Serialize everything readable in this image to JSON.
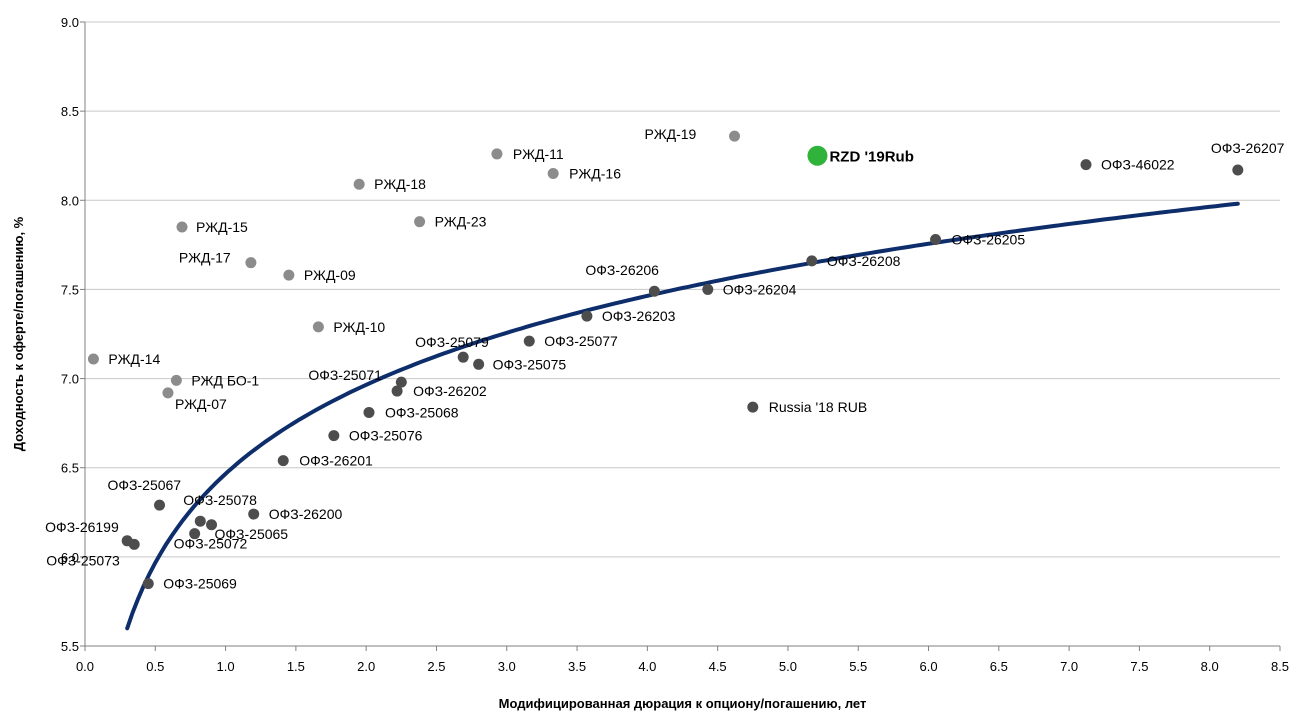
{
  "chart_data": {
    "type": "scatter",
    "title": "",
    "xlabel": "Модифицированная дюрация к опциону/погашению, лет",
    "ylabel": "Доходность к оферте/погашению, %",
    "xlim": [
      0.0,
      8.5
    ],
    "ylim": [
      5.5,
      9.0
    ],
    "x_ticks": [
      "0.0",
      "0.5",
      "1.0",
      "1.5",
      "2.0",
      "2.5",
      "3.0",
      "3.5",
      "4.0",
      "4.5",
      "5.0",
      "5.5",
      "6.0",
      "6.5",
      "7.0",
      "7.5",
      "8.0",
      "8.5"
    ],
    "y_ticks": [
      "5.5",
      "6.0",
      "6.5",
      "7.0",
      "7.5",
      "8.0",
      "8.5",
      "9.0"
    ],
    "grid": "horizontal",
    "legend": "none",
    "colors": {
      "rzd": "#8c8c8c",
      "ofz": "#4d4d4d",
      "highlight": "#2fb33a",
      "curve": "#0d2d6b"
    },
    "trend": {
      "type": "logarithmic",
      "x_range": [
        0.3,
        8.2
      ],
      "a": 6.466,
      "b": 0.72
    },
    "series": [
      {
        "group": "rzd",
        "points": [
          {
            "label": "РЖД-19",
            "x": 4.62,
            "y": 8.36
          },
          {
            "label": "РЖД-11",
            "x": 2.93,
            "y": 8.26
          },
          {
            "label": "РЖД-16",
            "x": 3.33,
            "y": 8.15
          },
          {
            "label": "РЖД-18",
            "x": 1.95,
            "y": 8.09
          },
          {
            "label": "РЖД-23",
            "x": 2.38,
            "y": 7.88
          },
          {
            "label": "РЖД-15",
            "x": 0.69,
            "y": 7.85
          },
          {
            "label": "РЖД-17",
            "x": 1.18,
            "y": 7.65
          },
          {
            "label": "РЖД-09",
            "x": 1.45,
            "y": 7.58
          },
          {
            "label": "РЖД-10",
            "x": 1.66,
            "y": 7.29
          },
          {
            "label": "РЖД-14",
            "x": 0.06,
            "y": 7.11
          },
          {
            "label": "РЖД БО-1",
            "x": 0.65,
            "y": 6.99
          },
          {
            "label": "РЖД-07",
            "x": 0.59,
            "y": 6.92
          }
        ]
      },
      {
        "group": "ofz",
        "points": [
          {
            "label": "ОФЗ-26207",
            "x": 8.2,
            "y": 8.17
          },
          {
            "label": "ОФЗ-46022",
            "x": 7.12,
            "y": 8.2
          },
          {
            "label": "ОФЗ-26205",
            "x": 6.05,
            "y": 7.78
          },
          {
            "label": "ОФЗ-26208",
            "x": 5.17,
            "y": 7.66
          },
          {
            "label": "ОФЗ-26206",
            "x": 4.05,
            "y": 7.49
          },
          {
            "label": "ОФЗ-26204",
            "x": 4.43,
            "y": 7.5
          },
          {
            "label": "ОФЗ-26203",
            "x": 3.57,
            "y": 7.35
          },
          {
            "label": "ОФЗ-25077",
            "x": 3.16,
            "y": 7.21
          },
          {
            "label": "ОФЗ-25079",
            "x": 2.69,
            "y": 7.12
          },
          {
            "label": "ОФЗ-25075",
            "x": 2.8,
            "y": 7.08
          },
          {
            "label": "ОФЗ-25071",
            "x": 2.25,
            "y": 6.98
          },
          {
            "label": "ОФЗ-26202",
            "x": 2.22,
            "y": 6.93
          },
          {
            "label": "ОФЗ-25068",
            "x": 2.02,
            "y": 6.81
          },
          {
            "label": "ОФЗ-25076",
            "x": 1.77,
            "y": 6.68
          },
          {
            "label": "ОФЗ-26201",
            "x": 1.41,
            "y": 6.54
          },
          {
            "label": "Russia '18 RUB",
            "x": 4.75,
            "y": 6.84
          },
          {
            "label": "ОФЗ-25067",
            "x": 0.53,
            "y": 6.29
          },
          {
            "label": "ОФЗ-26200",
            "x": 1.2,
            "y": 6.24
          },
          {
            "label": "ОФЗ-25078",
            "x": 0.82,
            "y": 6.2
          },
          {
            "label": "ОФЗ-25065",
            "x": 0.9,
            "y": 6.18
          },
          {
            "label": "ОФЗ-25072",
            "x": 0.78,
            "y": 6.13
          },
          {
            "label": "ОФЗ-26199",
            "x": 0.3,
            "y": 6.09
          },
          {
            "label": "ОФЗ-25073",
            "x": 0.35,
            "y": 6.07
          },
          {
            "label": "ОФЗ-25069",
            "x": 0.45,
            "y": 5.85
          }
        ]
      },
      {
        "group": "highlight",
        "points": [
          {
            "label": "RZD '19Rub",
            "x": 5.21,
            "y": 8.25
          }
        ]
      }
    ]
  }
}
